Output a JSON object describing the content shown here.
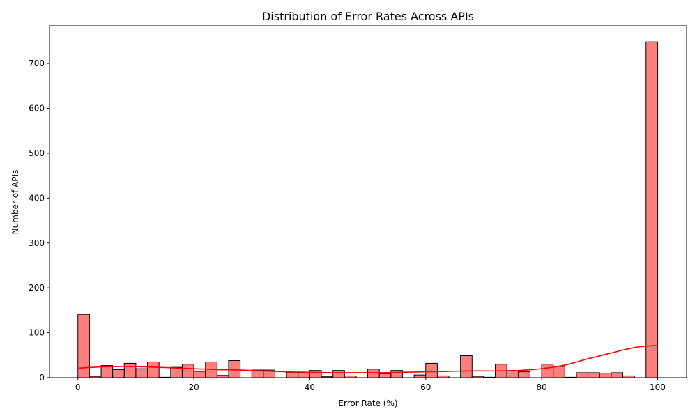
{
  "chart_data": {
    "type": "bar",
    "title": "Distribution of Error Rates Across APIs",
    "xlabel": "Error Rate (%)",
    "ylabel": "Number of APIs",
    "xlim": [
      -4.9,
      105.0
    ],
    "ylim": [
      0,
      784
    ],
    "xticks": [
      0,
      20,
      40,
      60,
      80,
      100
    ],
    "yticks": [
      0,
      100,
      200,
      300,
      400,
      500,
      600,
      700
    ],
    "bin_edges": [
      0,
      2,
      4,
      6,
      8,
      10,
      12,
      14,
      16,
      18,
      20,
      22,
      24,
      26,
      28,
      30,
      32,
      34,
      36,
      38,
      40,
      42,
      44,
      46,
      48,
      50,
      52,
      54,
      56,
      58,
      60,
      62,
      64,
      66,
      68,
      70,
      72,
      74,
      76,
      78,
      80,
      82,
      84,
      86,
      88,
      90,
      92,
      94,
      96,
      98,
      100
    ],
    "counts": [
      141,
      3,
      27,
      18,
      32,
      20,
      35,
      1,
      23,
      30,
      14,
      35,
      5,
      38,
      0,
      17,
      17,
      0,
      12,
      11,
      16,
      2,
      16,
      4,
      0,
      19,
      9,
      16,
      0,
      6,
      32,
      4,
      0,
      49,
      3,
      1,
      30,
      16,
      13,
      0,
      30,
      25,
      1,
      11,
      11,
      10,
      11,
      4,
      0,
      748
    ],
    "bar_color": "#ff7f7f",
    "edge_color": "#000000",
    "kde": {
      "color": "#ff0000",
      "x": [
        0,
        4,
        8,
        12,
        16,
        20,
        24,
        28,
        32,
        36,
        40,
        44,
        48,
        52,
        56,
        60,
        64,
        68,
        72,
        76,
        80,
        84,
        88,
        92,
        96,
        99,
        100
      ],
      "y": [
        21,
        24,
        25,
        24,
        22,
        20,
        18,
        17,
        15,
        13,
        12,
        11,
        11,
        11,
        12,
        13,
        14,
        15,
        15,
        16,
        20,
        28,
        42,
        55,
        67,
        71,
        71
      ]
    },
    "grid": false,
    "legend": "none"
  }
}
